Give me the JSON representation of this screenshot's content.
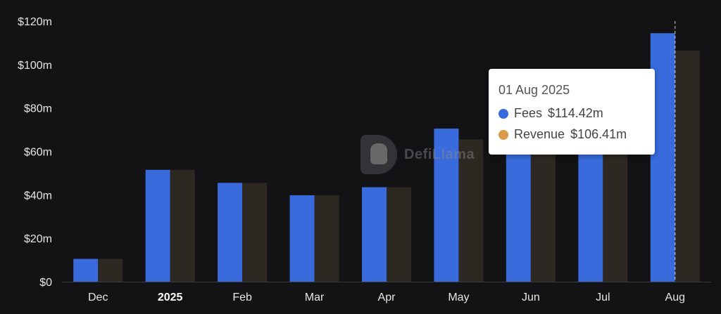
{
  "chart_data": {
    "type": "bar",
    "categories": [
      "Dec",
      "2025",
      "Feb",
      "Mar",
      "Apr",
      "May",
      "Jun",
      "Jul",
      "Aug"
    ],
    "series": [
      {
        "name": "Fees",
        "color": "#3a6bdc",
        "values": [
          10.5,
          51.5,
          45.5,
          39.8,
          43.5,
          70.5,
          63.0,
          63.0,
          114.42
        ]
      },
      {
        "name": "Revenue",
        "color": "#2e2822",
        "values": [
          10.5,
          51.5,
          45.5,
          39.8,
          43.5,
          65.5,
          59.0,
          59.0,
          106.41
        ]
      }
    ],
    "ylim": [
      0,
      120
    ],
    "y_ticks": [
      "$0",
      "$20m",
      "$40m",
      "$60m",
      "$80m",
      "$100m",
      "$120m"
    ],
    "bold_category": "2025",
    "grid": false,
    "highlighted_category": "Aug"
  },
  "watermark": {
    "text": "DefiLlama",
    "icon": "llama-logo-icon"
  },
  "tooltip": {
    "date": "01 Aug 2025",
    "rows": [
      {
        "label": "Fees",
        "value": "$114.42m",
        "color": "#3a6bdc"
      },
      {
        "label": "Revenue",
        "value": "$106.41m",
        "color": "#d99a4a"
      }
    ]
  }
}
